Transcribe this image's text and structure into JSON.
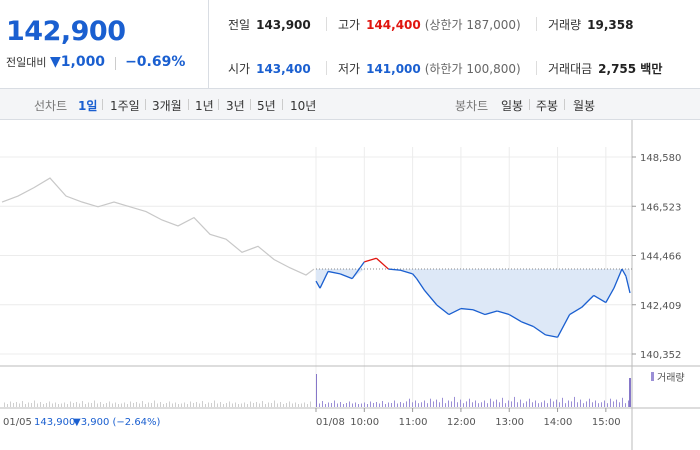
{
  "quote": {
    "price": "142,900",
    "change_label": "전일대비",
    "change_value": "1,000",
    "change_pct": "−0.69%",
    "prev_close_label": "전일",
    "prev_close": "143,900",
    "high_label": "고가",
    "high": "144,400",
    "upper_limit": "(상한가 187,000)",
    "volume_label": "거래량",
    "volume": "19,358",
    "open_label": "시가",
    "open": "143,400",
    "low_label": "저가",
    "low": "141,000",
    "lower_limit": "(하한가 100,800)",
    "amount_label": "거래대금",
    "amount": "2,755 백만"
  },
  "tabs": {
    "line_label": "선차트",
    "range": [
      "1일",
      "1주일",
      "3개월",
      "1년",
      "3년",
      "5년",
      "10년"
    ],
    "active": "1일",
    "candle_label": "봉차트",
    "candle": [
      "일봉",
      "주봉",
      "월봉"
    ]
  },
  "footer": {
    "prev_date": "01/05",
    "prev_close": "143,900",
    "prev_change": "▼3,900 (−2.64%)",
    "volume_legend": "거래량"
  },
  "colors": {
    "up": "#e0150f",
    "down": "#1a5fd0",
    "prev_line": "#c8c8c8",
    "fill": "#dde8f7"
  },
  "chart_data": {
    "type": "line",
    "y_ticks": [
      "148,580",
      "146,523",
      "144,466",
      "142,409",
      "140,352"
    ],
    "ylim": [
      140352,
      148580
    ],
    "reference_price": 143900,
    "x_ticks": [
      "01/05",
      "01/08",
      "10:00",
      "11:00",
      "12:00",
      "13:00",
      "14:00",
      "15:00"
    ],
    "previous_day": {
      "x": [
        "09:00",
        "09:20",
        "09:40",
        "10:00",
        "10:20",
        "10:40",
        "11:00",
        "11:20",
        "11:40",
        "12:00",
        "12:20",
        "12:40",
        "13:00",
        "13:20",
        "13:40",
        "14:00",
        "14:20",
        "14:40",
        "15:00",
        "15:20",
        "15:30"
      ],
      "y": [
        146700,
        146950,
        147300,
        147700,
        146950,
        146700,
        146500,
        146700,
        146500,
        146300,
        145950,
        145700,
        146050,
        145350,
        145150,
        144600,
        144850,
        144300,
        143950,
        143650,
        143900
      ]
    },
    "current_day": {
      "x": [
        "09:00",
        "09:05",
        "09:15",
        "09:30",
        "09:45",
        "10:00",
        "10:15",
        "10:30",
        "10:45",
        "11:00",
        "11:05",
        "11:15",
        "11:30",
        "11:45",
        "12:00",
        "12:15",
        "12:30",
        "12:45",
        "13:00",
        "13:15",
        "13:30",
        "13:45",
        "14:00",
        "14:15",
        "14:30",
        "14:45",
        "15:00",
        "15:10",
        "15:20",
        "15:25",
        "15:30"
      ],
      "y": [
        143400,
        143100,
        143800,
        143700,
        143500,
        144200,
        144350,
        143900,
        143850,
        143700,
        143500,
        143000,
        142400,
        142000,
        142250,
        142200,
        142000,
        142150,
        142000,
        141700,
        141500,
        141150,
        141050,
        142000,
        142300,
        142800,
        142500,
        143100,
        143900,
        143600,
        142900
      ]
    },
    "volume_shown": true
  }
}
